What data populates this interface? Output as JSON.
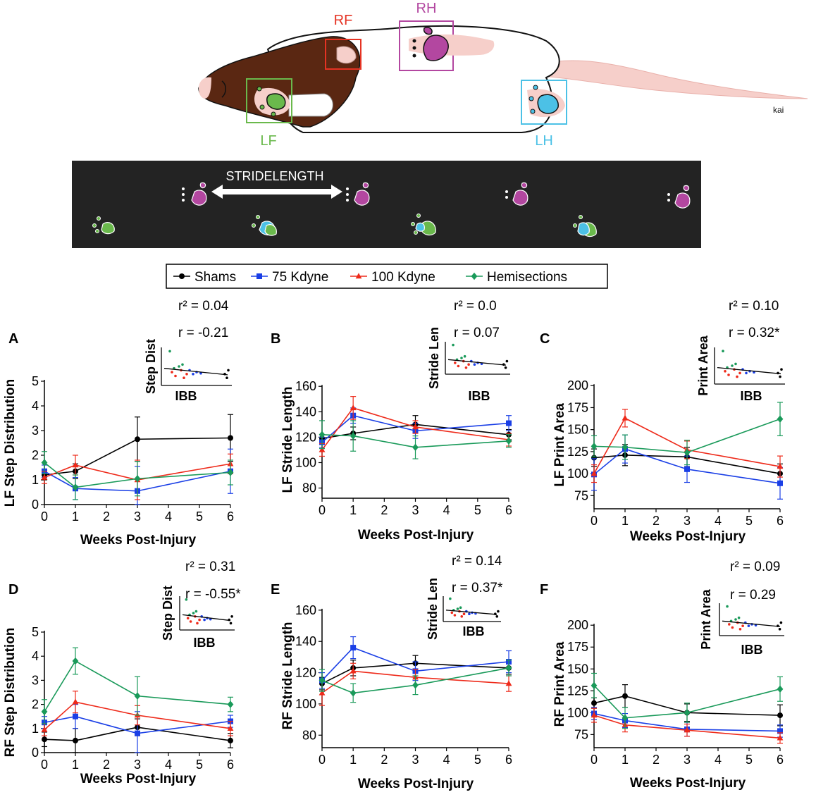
{
  "colors": {
    "shams": "#000000",
    "kd75": "#1a3fe6",
    "kd100": "#ee2a1a",
    "hemi": "#1a9a5a",
    "rf": "#e53323",
    "rh": "#b347a0",
    "lf": "#6ab94c",
    "lh": "#4cc1e6",
    "footprint_bg": "#232323"
  },
  "rat": {
    "labels": {
      "rf": "RF",
      "rh": "RH",
      "lf": "LF",
      "lh": "LH"
    },
    "signature": "kai"
  },
  "footprints": {
    "stride_label": "STRIDELENGTH"
  },
  "legend": {
    "items": [
      {
        "key": "shams",
        "label": "Shams",
        "marker": "circle"
      },
      {
        "key": "kd75",
        "label": "75 Kdyne",
        "marker": "square"
      },
      {
        "key": "kd100",
        "label": "100 Kdyne",
        "marker": "triangle"
      },
      {
        "key": "hemi",
        "label": "Hemisections",
        "marker": "diamond"
      }
    ]
  },
  "chart_data": [
    {
      "id": "A",
      "panel_letter": "A",
      "type": "line",
      "ylabel": "LF Step Distribution",
      "xlabel": "Weeks Post-Injury",
      "x_ticks": [
        0,
        1,
        2,
        3,
        4,
        5,
        6
      ],
      "xlim": [
        0,
        6
      ],
      "ylim": [
        0,
        5
      ],
      "y_ticks": [
        0,
        1,
        2,
        3,
        4,
        5
      ],
      "series": [
        {
          "key": "shams",
          "name": "Shams",
          "x": [
            0,
            1,
            3,
            6
          ],
          "y": [
            1.2,
            1.35,
            2.65,
            2.7
          ],
          "err": [
            0.2,
            0.3,
            0.9,
            0.95
          ]
        },
        {
          "key": "kd75",
          "name": "75 Kdyne",
          "x": [
            0,
            1,
            3,
            6
          ],
          "y": [
            1.35,
            0.65,
            0.55,
            1.35
          ],
          "err": [
            0.25,
            0.45,
            1.0,
            0.9
          ]
        },
        {
          "key": "kd100",
          "name": "100 Kdyne",
          "x": [
            0,
            1,
            3,
            6
          ],
          "y": [
            1.1,
            1.6,
            1.0,
            1.65
          ],
          "err": [
            0.25,
            0.4,
            0.8,
            0.4
          ]
        },
        {
          "key": "hemi",
          "name": "Hemisections",
          "x": [
            0,
            1,
            3,
            6
          ],
          "y": [
            1.7,
            0.7,
            1.05,
            1.3
          ],
          "err": [
            0.45,
            0.5,
            0.7,
            0.5
          ]
        }
      ],
      "inset": {
        "ylabel": "Step Dist",
        "xlabel": "IBB",
        "r2": "r² = 0.04",
        "r": "r   = -0.21"
      }
    },
    {
      "id": "B",
      "panel_letter": "B",
      "type": "line",
      "ylabel": "LF Stride Length",
      "xlabel": "Weeks Post-Injury",
      "x_ticks": [
        0,
        1,
        2,
        3,
        4,
        5,
        6
      ],
      "xlim": [
        0,
        6
      ],
      "ylim": [
        72,
        164
      ],
      "y_ticks": [
        80,
        100,
        120,
        140,
        160
      ],
      "series": [
        {
          "key": "shams",
          "name": "Shams",
          "x": [
            0,
            1,
            3,
            6
          ],
          "y": [
            119,
            123,
            130,
            122
          ],
          "err": [
            3,
            5,
            7,
            4
          ]
        },
        {
          "key": "kd75",
          "name": "75 Kdyne",
          "x": [
            0,
            1,
            3,
            6
          ],
          "y": [
            116,
            137,
            125,
            131
          ],
          "err": [
            4,
            6,
            6,
            6
          ]
        },
        {
          "key": "kd100",
          "name": "100 Kdyne",
          "x": [
            0,
            1,
            3,
            6
          ],
          "y": [
            110,
            143,
            128,
            118
          ],
          "err": [
            5,
            9,
            5,
            5
          ]
        },
        {
          "key": "hemi",
          "name": "Hemisections",
          "x": [
            0,
            1,
            3,
            6
          ],
          "y": [
            122,
            121,
            112,
            117
          ],
          "err": [
            11,
            12,
            9,
            5
          ]
        }
      ],
      "inset": {
        "ylabel": "Stride Len",
        "xlabel": "IBB",
        "r2": "r² = 0.0",
        "r": "r   = 0.07"
      }
    },
    {
      "id": "C",
      "panel_letter": "C",
      "type": "line",
      "ylabel": "LF Print Area",
      "xlabel": "Weeks Post-Injury",
      "x_ticks": [
        0,
        1,
        2,
        3,
        4,
        5,
        6
      ],
      "xlim": [
        0,
        6
      ],
      "ylim": [
        60,
        205
      ],
      "y_ticks": [
        75,
        100,
        125,
        150,
        175,
        200
      ],
      "series": [
        {
          "key": "shams",
          "name": "Shams",
          "x": [
            0,
            1,
            3,
            6
          ],
          "y": [
            118,
            121,
            119,
            100
          ],
          "err": [
            10,
            12,
            11,
            11
          ]
        },
        {
          "key": "kd75",
          "name": "75 Kdyne",
          "x": [
            0,
            1,
            3,
            6
          ],
          "y": [
            99,
            128,
            105,
            89
          ],
          "err": [
            18,
            16,
            15,
            18
          ]
        },
        {
          "key": "kd100",
          "name": "100 Kdyne",
          "x": [
            0,
            1,
            3,
            6
          ],
          "y": [
            100,
            163,
            127,
            108
          ],
          "err": [
            10,
            10,
            10,
            12
          ]
        },
        {
          "key": "hemi",
          "name": "Hemisections",
          "x": [
            0,
            1,
            3,
            6
          ],
          "y": [
            131,
            130,
            124,
            162
          ],
          "err": [
            12,
            14,
            14,
            19
          ]
        }
      ],
      "inset": {
        "ylabel": "Print Area",
        "xlabel": "IBB",
        "r2": "r² = 0.10",
        "r": "r   = 0.32*"
      }
    },
    {
      "id": "D",
      "panel_letter": "D",
      "type": "line",
      "ylabel": "RF Step Distribution",
      "xlabel": "Weeks Post-Injury",
      "x_ticks": [
        0,
        1,
        2,
        3,
        4,
        5,
        6
      ],
      "xlim": [
        0,
        6
      ],
      "ylim": [
        0,
        5
      ],
      "y_ticks": [
        0,
        1,
        2,
        3,
        4,
        5
      ],
      "series": [
        {
          "key": "shams",
          "name": "Shams",
          "x": [
            0,
            1,
            3,
            6
          ],
          "y": [
            0.55,
            0.5,
            1.05,
            0.5
          ],
          "err": [
            0.3,
            0.5,
            0.35,
            0.3
          ]
        },
        {
          "key": "kd75",
          "name": "75 Kdyne",
          "x": [
            0,
            1,
            3,
            6
          ],
          "y": [
            1.25,
            1.5,
            0.8,
            1.3
          ],
          "err": [
            0.25,
            0.5,
            0.9,
            0.25
          ]
        },
        {
          "key": "kd100",
          "name": "100 Kdyne",
          "x": [
            0,
            1,
            3,
            6
          ],
          "y": [
            0.95,
            2.1,
            1.55,
            1.0
          ],
          "err": [
            0.25,
            0.45,
            0.4,
            0.3
          ]
        },
        {
          "key": "hemi",
          "name": "Hemisections",
          "x": [
            0,
            1,
            3,
            6
          ],
          "y": [
            1.7,
            3.8,
            2.35,
            2.0
          ],
          "err": [
            0.5,
            0.55,
            0.8,
            0.3
          ]
        }
      ],
      "inset": {
        "ylabel": "Step Dist",
        "xlabel": "IBB",
        "r2": "r² = 0.31",
        "r": "r   = -0.55*"
      }
    },
    {
      "id": "E",
      "panel_letter": "E",
      "type": "line",
      "ylabel": "RF Stride Length",
      "xlabel": "Weeks Post-Injury",
      "x_ticks": [
        0,
        1,
        2,
        3,
        4,
        5,
        6
      ],
      "xlim": [
        0,
        6
      ],
      "ylim": [
        72,
        164
      ],
      "y_ticks": [
        80,
        100,
        120,
        140,
        160
      ],
      "series": [
        {
          "key": "shams",
          "name": "Shams",
          "x": [
            0,
            1,
            3,
            6
          ],
          "y": [
            113,
            123,
            126,
            123
          ],
          "err": [
            4,
            5,
            5,
            4
          ]
        },
        {
          "key": "kd75",
          "name": "75 Kdyne",
          "x": [
            0,
            1,
            3,
            6
          ],
          "y": [
            115,
            136,
            121,
            127
          ],
          "err": [
            5,
            7,
            6,
            7
          ]
        },
        {
          "key": "kd100",
          "name": "100 Kdyne",
          "x": [
            0,
            1,
            3,
            6
          ],
          "y": [
            107,
            121,
            117,
            113
          ],
          "err": [
            8,
            5,
            5,
            5
          ]
        },
        {
          "key": "hemi",
          "name": "Hemisections",
          "x": [
            0,
            1,
            3,
            6
          ],
          "y": [
            115,
            107,
            112,
            123
          ],
          "err": [
            7,
            6,
            6,
            5
          ]
        }
      ],
      "inset": {
        "ylabel": "Stride Len",
        "xlabel": "IBB",
        "r2": "r² = 0.14",
        "r": "r   = 0.37*"
      }
    },
    {
      "id": "F",
      "panel_letter": "F",
      "type": "line",
      "ylabel": "RF Print Area",
      "xlabel": "Weeks Post-Injury",
      "x_ticks": [
        0,
        1,
        2,
        3,
        4,
        5,
        6
      ],
      "xlim": [
        0,
        6
      ],
      "ylim": [
        60,
        205
      ],
      "y_ticks": [
        75,
        100,
        125,
        150,
        175,
        200
      ],
      "series": [
        {
          "key": "shams",
          "name": "Shams",
          "x": [
            0,
            1,
            3,
            6
          ],
          "y": [
            111,
            119,
            100,
            97
          ],
          "err": [
            6,
            13,
            10,
            12
          ]
        },
        {
          "key": "kd75",
          "name": "75 Kdyne",
          "x": [
            0,
            1,
            3,
            6
          ],
          "y": [
            99,
            91,
            81,
            79
          ],
          "err": [
            7,
            8,
            8,
            7
          ]
        },
        {
          "key": "kd100",
          "name": "100 Kdyne",
          "x": [
            0,
            1,
            3,
            6
          ],
          "y": [
            97,
            86,
            80,
            71
          ],
          "err": [
            8,
            8,
            7,
            6
          ]
        },
        {
          "key": "hemi",
          "name": "Hemisections",
          "x": [
            0,
            1,
            3,
            6
          ],
          "y": [
            131,
            94,
            100,
            127
          ],
          "err": [
            14,
            12,
            11,
            14
          ]
        }
      ],
      "inset": {
        "ylabel": "Print Area",
        "xlabel": "IBB",
        "r2": "r² = 0.09",
        "r": "r   = 0.29"
      }
    }
  ]
}
